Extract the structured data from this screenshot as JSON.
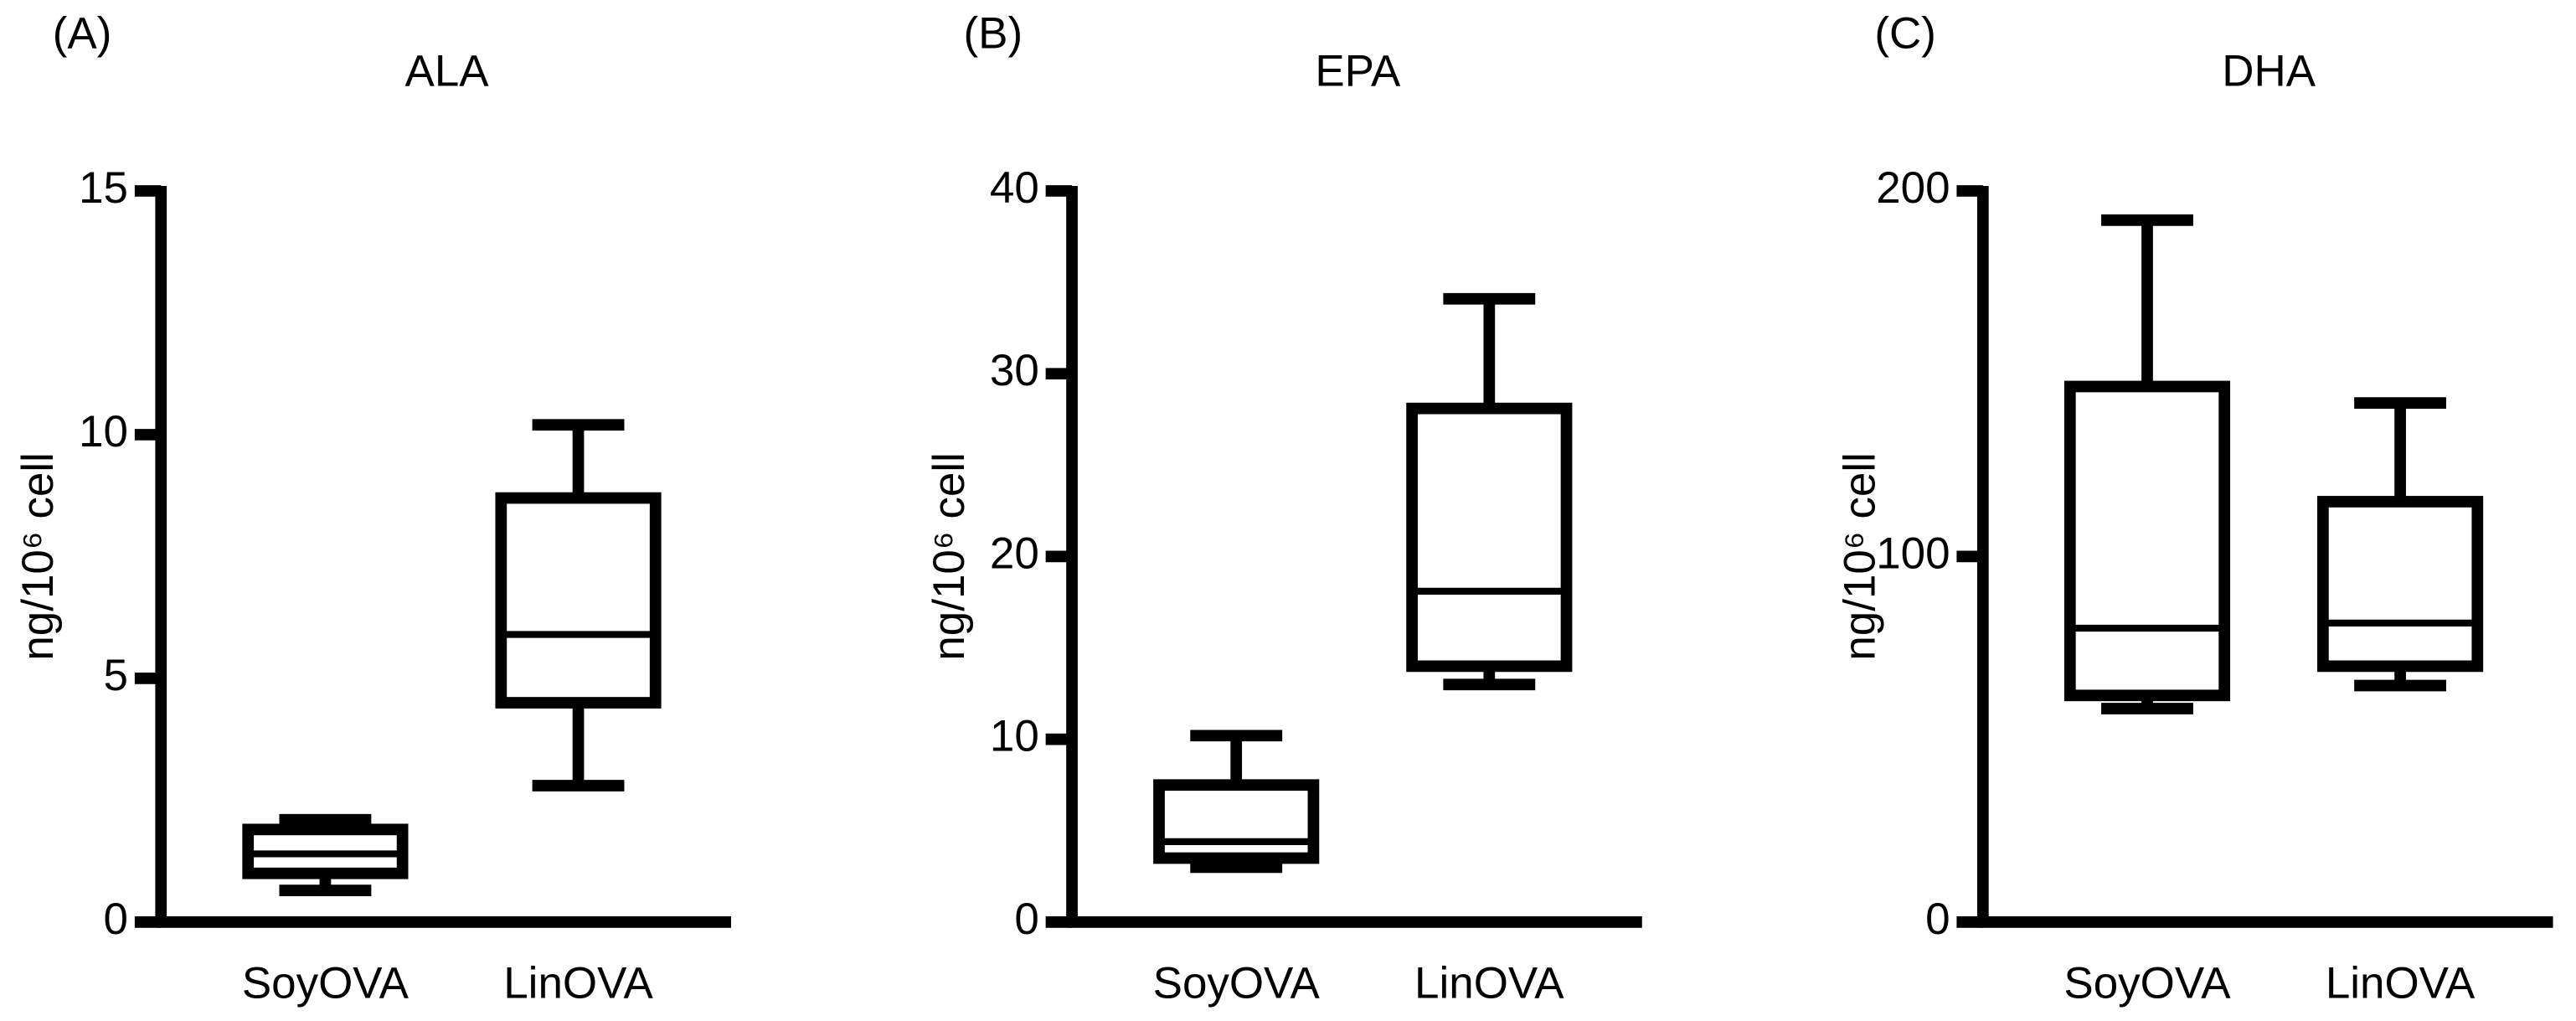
{
  "chart_data": [
    {
      "type": "box",
      "panel_label": "(A)",
      "title": "ALA",
      "y_label": "ng/10⁶ cell",
      "categories": [
        "SoyOVA",
        "LinOVA"
      ],
      "min": [
        0.65,
        2.8
      ],
      "q1": [
        1.0,
        4.5
      ],
      "median": [
        1.4,
        5.9
      ],
      "q3": [
        1.9,
        8.7
      ],
      "max": [
        2.1,
        10.2
      ],
      "color": "#000000",
      "ylim": [
        0,
        15
      ],
      "yticks": [
        0,
        5,
        10,
        15
      ]
    },
    {
      "type": "box",
      "panel_label": "(B)",
      "title": "EPA",
      "y_label": "ng/10⁶ cell",
      "categories": [
        "SoyOVA",
        "LinOVA"
      ],
      "min": [
        3.0,
        13.0
      ],
      "q1": [
        3.5,
        14.0
      ],
      "median": [
        4.4,
        18.1
      ],
      "q3": [
        7.5,
        28.1
      ],
      "max": [
        10.2,
        34.1
      ],
      "color": "#000000",
      "ylim": [
        0,
        40
      ],
      "yticks": [
        0,
        10,
        20,
        30,
        40
      ]
    },
    {
      "type": "box",
      "panel_label": "(C)",
      "title": "DHA",
      "y_label": "ng/10⁶ cell",
      "categories": [
        "SoyOVA",
        "LinOVA"
      ],
      "min": [
        58.4,
        64.7
      ],
      "q1": [
        62,
        70
      ],
      "median": [
        80.4,
        81.8
      ],
      "q3": [
        146.5,
        115
      ],
      "max": [
        192,
        142
      ],
      "color": "#000000",
      "ylim": [
        0,
        200
      ],
      "yticks": [
        0,
        100,
        200
      ]
    }
  ]
}
